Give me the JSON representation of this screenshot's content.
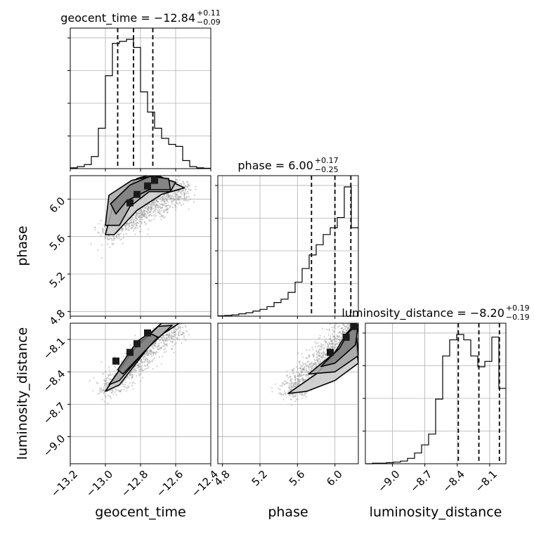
{
  "chart_data": {
    "type": "corner",
    "parameters": [
      "geocent_time",
      "phase",
      "luminosity_distance"
    ],
    "axis_labels": {
      "geocent_time": "geocent_time",
      "phase": "phase",
      "luminosity_distance": "luminosity_distance"
    },
    "ranges": {
      "geocent_time": [
        -13.2,
        -12.4
      ],
      "phase": [
        4.75,
        6.25
      ],
      "luminosity_distance": [
        -9.25,
        -7.95
      ]
    },
    "ticks": {
      "geocent_time": [
        -13.2,
        -13.0,
        -12.8,
        -12.6,
        -12.4
      ],
      "phase": [
        4.8,
        5.2,
        5.6,
        6.0
      ],
      "luminosity_distance": [
        -9.0,
        -8.7,
        -8.4,
        -8.1
      ]
    },
    "tick_labels": {
      "geocent_time": [
        "−13.2",
        "−13.0",
        "−12.8",
        "−12.6",
        "−12.4"
      ],
      "phase": [
        "4.8",
        "5.2",
        "5.6",
        "6.0"
      ],
      "luminosity_distance": [
        "−9.0",
        "−8.7",
        "−8.4",
        "−8.1"
      ]
    },
    "titles": [
      {
        "param": "geocent_time",
        "main": "geocent_time = −12.84",
        "sup": "+0.11",
        "sub": "−0.09"
      },
      {
        "param": "phase",
        "main": "phase = 6.00",
        "sup": "+0.17",
        "sub": "−0.25"
      },
      {
        "param": "luminosity_distance",
        "main": "luminosity_distance = −8.20",
        "sup": "+0.19",
        "sub": "−0.19"
      }
    ],
    "quantiles": {
      "geocent_time": [
        -12.93,
        -12.84,
        -12.73
      ],
      "phase": [
        5.75,
        6.0,
        6.17
      ],
      "luminosity_distance": [
        -8.39,
        -8.2,
        -8.01
      ]
    },
    "histograms": {
      "geocent_time": {
        "edges": [
          -13.2,
          -13.16,
          -13.12,
          -13.08,
          -13.04,
          -13.0,
          -12.96,
          -12.92,
          -12.88,
          -12.84,
          -12.8,
          -12.76,
          -12.72,
          -12.68,
          -12.64,
          -12.6,
          -12.56,
          -12.52,
          -12.48,
          -12.44,
          -12.4
        ],
        "counts": [
          2,
          5,
          10,
          30,
          100,
          230,
          310,
          315,
          320,
          300,
          190,
          140,
          100,
          75,
          60,
          55,
          20,
          5,
          2,
          1
        ]
      },
      "phase": {
        "edges": [
          4.75,
          4.825,
          4.9,
          4.975,
          5.05,
          5.125,
          5.2,
          5.275,
          5.35,
          5.425,
          5.5,
          5.575,
          5.65,
          5.725,
          5.8,
          5.875,
          5.95,
          6.025,
          6.1,
          6.175,
          6.25
        ],
        "counts": [
          1,
          2,
          4,
          7,
          10,
          15,
          20,
          28,
          40,
          50,
          70,
          100,
          140,
          180,
          210,
          240,
          260,
          290,
          380,
          260
        ]
      },
      "luminosity_distance": {
        "edges": [
          -9.25,
          -9.185,
          -9.12,
          -9.055,
          -8.99,
          -8.925,
          -8.86,
          -8.795,
          -8.73,
          -8.665,
          -8.6,
          -8.535,
          -8.47,
          -8.405,
          -8.34,
          -8.275,
          -8.21,
          -8.145,
          -8.08,
          -8.015,
          -7.95
        ],
        "counts": [
          0,
          1,
          1,
          2,
          3,
          5,
          10,
          20,
          35,
          55,
          120,
          200,
          230,
          240,
          230,
          200,
          180,
          190,
          235,
          140
        ]
      }
    },
    "contours_2d": {
      "phase_vs_geocent_time": {
        "x": "geocent_time",
        "y": "phase",
        "levels": [
          [
            [
              -12.97,
              5.95
            ],
            [
              -12.86,
              6.15
            ],
            [
              -12.75,
              6.24
            ],
            [
              -12.64,
              6.22
            ],
            [
              -12.63,
              6.1
            ],
            [
              -12.75,
              6.1
            ],
            [
              -12.88,
              5.98
            ],
            [
              -12.94,
              5.84
            ]
          ],
          [
            [
              -13.0,
              5.72
            ],
            [
              -12.98,
              6.04
            ],
            [
              -12.85,
              6.2
            ],
            [
              -12.72,
              6.25
            ],
            [
              -12.6,
              6.18
            ],
            [
              -12.63,
              6.08
            ],
            [
              -12.75,
              6.08
            ],
            [
              -12.86,
              5.92
            ],
            [
              -12.92,
              5.72
            ]
          ],
          [
            [
              -13.0,
              5.62
            ],
            [
              -12.95,
              5.98
            ],
            [
              -12.82,
              6.22
            ],
            [
              -12.72,
              6.27
            ],
            [
              -12.55,
              6.12
            ],
            [
              -12.68,
              6.05
            ],
            [
              -12.82,
              5.88
            ],
            [
              -12.95,
              5.62
            ]
          ]
        ]
      },
      "luminosity_distance_vs_geocent_time": {
        "x": "geocent_time",
        "y": "luminosity_distance",
        "levels": [
          [
            [
              -12.93,
              -8.38
            ],
            [
              -12.82,
              -8.12
            ],
            [
              -12.75,
              -8.04
            ],
            [
              -12.7,
              -8.08
            ],
            [
              -12.8,
              -8.25
            ],
            [
              -12.9,
              -8.42
            ]
          ],
          [
            [
              -12.98,
              -8.52
            ],
            [
              -12.84,
              -8.2
            ],
            [
              -12.7,
              -7.98
            ],
            [
              -12.62,
              -7.97
            ],
            [
              -12.76,
              -8.18
            ],
            [
              -12.92,
              -8.48
            ]
          ],
          [
            [
              -13.0,
              -8.58
            ],
            [
              -12.82,
              -8.15
            ],
            [
              -12.68,
              -7.95
            ],
            [
              -12.58,
              -7.95
            ],
            [
              -12.72,
              -8.1
            ],
            [
              -12.92,
              -8.52
            ]
          ]
        ]
      },
      "luminosity_distance_vs_phase": {
        "x": "phase",
        "y": "luminosity_distance",
        "levels": [
          [
            [
              5.85,
              -8.35
            ],
            [
              6.05,
              -8.18
            ],
            [
              6.15,
              -8.03
            ],
            [
              6.25,
              -7.96
            ],
            [
              6.22,
              -8.15
            ],
            [
              6.0,
              -8.32
            ]
          ],
          [
            [
              5.72,
              -8.42
            ],
            [
              6.0,
              -8.22
            ],
            [
              6.12,
              -8.05
            ],
            [
              6.22,
              -7.95
            ],
            [
              6.25,
              -8.25
            ],
            [
              6.0,
              -8.4
            ]
          ],
          [
            [
              5.5,
              -8.6
            ],
            [
              5.8,
              -8.42
            ],
            [
              6.1,
              -8.15
            ],
            [
              6.2,
              -7.95
            ],
            [
              6.25,
              -8.32
            ],
            [
              6.0,
              -8.48
            ],
            [
              5.7,
              -8.58
            ]
          ]
        ]
      }
    },
    "peak_cells_2d": {
      "phase_vs_geocent_time": [
        [
          -12.86,
          5.96
        ],
        [
          -12.82,
          6.05
        ],
        [
          -12.76,
          6.14
        ],
        [
          -12.72,
          6.2
        ]
      ],
      "luminosity_distance_vs_geocent_time": [
        [
          -12.94,
          -8.3
        ],
        [
          -12.86,
          -8.22
        ],
        [
          -12.82,
          -8.14
        ],
        [
          -12.76,
          -8.04
        ]
      ],
      "luminosity_distance_vs_phase": [
        [
          5.95,
          -8.22
        ],
        [
          6.12,
          -8.08
        ],
        [
          6.2,
          -7.98
        ]
      ]
    },
    "grid": true,
    "scatter_color": "#9a9a9a",
    "line_color": "#000000"
  }
}
